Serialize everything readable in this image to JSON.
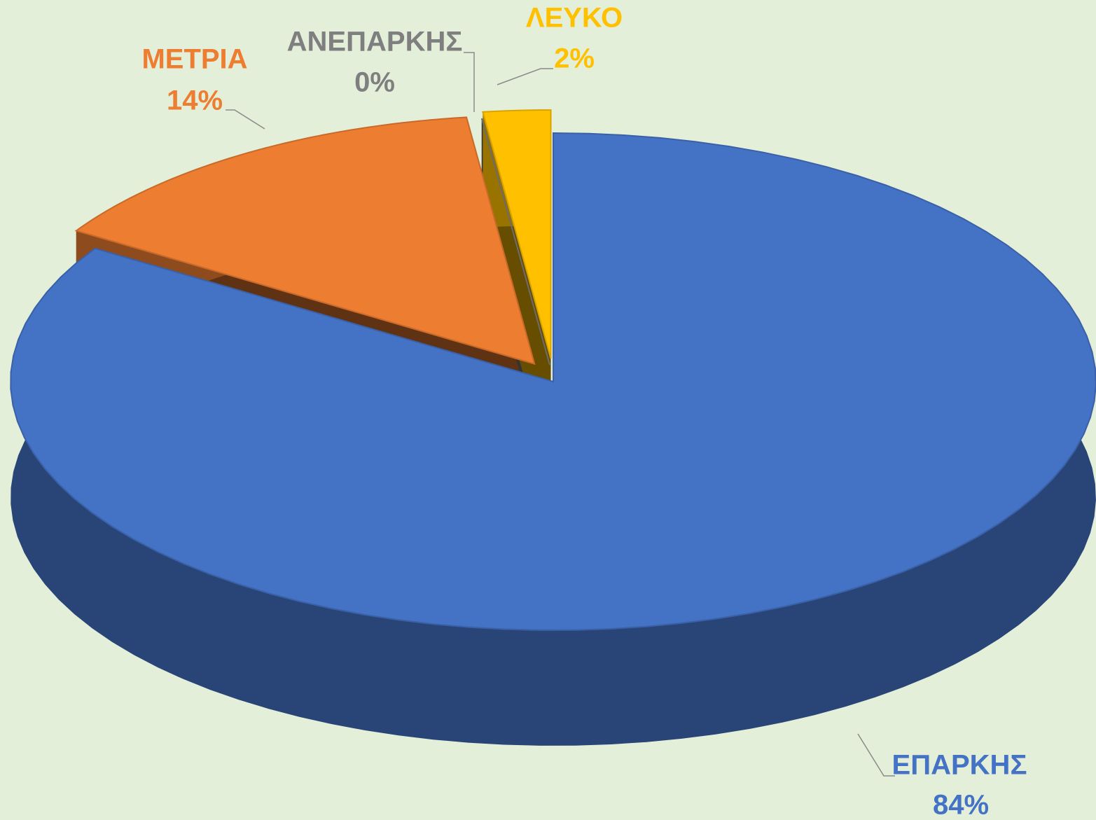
{
  "chart_data": {
    "type": "pie",
    "categories": [
      "ΕΠΑΡΚΗΣ",
      "ΜΕΤΡΙΑ",
      "ΑΝΕΠΑΡΚΗΣ",
      "ΛΕΥΚΟ"
    ],
    "values": [
      84,
      14,
      0,
      2
    ],
    "value_labels": [
      "84%",
      "14%",
      "0%",
      "2%"
    ],
    "colors": [
      "#4472c4",
      "#ed7d31",
      "#7f7f7f",
      "#ffc000"
    ]
  }
}
